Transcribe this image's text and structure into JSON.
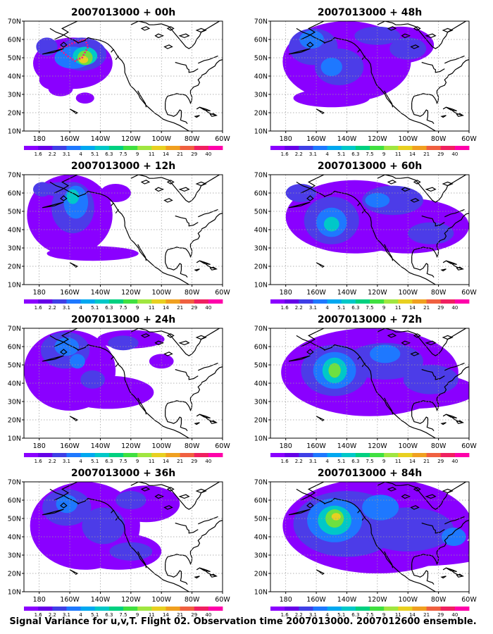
{
  "init_time": "2007013000",
  "panels": [
    {
      "title": "2007013000 + 00h",
      "lead": "00h",
      "blobs": [
        {
          "cx": -158,
          "cy": 47,
          "rx": 26,
          "ry": 14,
          "lvl": 0
        },
        {
          "cx": -168,
          "cy": 38,
          "rx": 12,
          "ry": 6,
          "lvl": 0
        },
        {
          "cx": -166,
          "cy": 33,
          "rx": 8,
          "ry": 4,
          "lvl": 0
        },
        {
          "cx": -150,
          "cy": 28,
          "rx": 6,
          "ry": 3,
          "lvl": 0
        },
        {
          "cx": -175,
          "cy": 56,
          "rx": 7,
          "ry": 5,
          "lvl": 1
        },
        {
          "cx": -152,
          "cy": 52,
          "rx": 16,
          "ry": 9,
          "lvl": 1
        },
        {
          "cx": -158,
          "cy": 50,
          "rx": 12,
          "ry": 6,
          "lvl": 2
        },
        {
          "cx": -150,
          "cy": 51,
          "rx": 8,
          "ry": 5,
          "lvl": 3
        },
        {
          "cx": -150,
          "cy": 50,
          "rx": 5,
          "ry": 4,
          "lvl": 4
        },
        {
          "cx": -151,
          "cy": 49,
          "rx": 3,
          "ry": 2,
          "lvl": 5
        }
      ]
    },
    {
      "title": "2007013000 + 12h",
      "lead": "12h",
      "blobs": [
        {
          "cx": -160,
          "cy": 48,
          "rx": 28,
          "ry": 22,
          "lvl": 0
        },
        {
          "cx": -145,
          "cy": 27,
          "rx": 30,
          "ry": 4,
          "lvl": 0
        },
        {
          "cx": -130,
          "cy": 60,
          "rx": 10,
          "ry": 5,
          "lvl": 0
        },
        {
          "cx": -178,
          "cy": 62,
          "rx": 6,
          "ry": 4,
          "lvl": 1
        },
        {
          "cx": -158,
          "cy": 52,
          "rx": 14,
          "ry": 14,
          "lvl": 1
        },
        {
          "cx": -165,
          "cy": 62,
          "rx": 14,
          "ry": 4,
          "lvl": 1
        },
        {
          "cx": -156,
          "cy": 55,
          "rx": 8,
          "ry": 9,
          "lvl": 2
        },
        {
          "cx": -158,
          "cy": 58,
          "rx": 4,
          "ry": 4,
          "lvl": 3
        }
      ]
    },
    {
      "title": "2007013000 + 24h",
      "lead": "24h",
      "blobs": [
        {
          "cx": -160,
          "cy": 47,
          "rx": 30,
          "ry": 22,
          "lvl": 0
        },
        {
          "cx": -135,
          "cy": 35,
          "rx": 30,
          "ry": 9,
          "lvl": 0
        },
        {
          "cx": -120,
          "cy": 64,
          "rx": 22,
          "ry": 5,
          "lvl": 0
        },
        {
          "cx": -100,
          "cy": 52,
          "rx": 8,
          "ry": 4,
          "lvl": 0
        },
        {
          "cx": -163,
          "cy": 58,
          "rx": 16,
          "ry": 10,
          "lvl": 1
        },
        {
          "cx": -125,
          "cy": 62,
          "rx": 10,
          "ry": 4,
          "lvl": 1
        },
        {
          "cx": -145,
          "cy": 42,
          "rx": 8,
          "ry": 5,
          "lvl": 1
        },
        {
          "cx": -162,
          "cy": 60,
          "rx": 8,
          "ry": 5,
          "lvl": 2
        },
        {
          "cx": -155,
          "cy": 52,
          "rx": 5,
          "ry": 4,
          "lvl": 2
        }
      ]
    },
    {
      "title": "2007013000 + 36h",
      "lead": "36h",
      "blobs": [
        {
          "cx": -150,
          "cy": 46,
          "rx": 36,
          "ry": 24,
          "lvl": 0
        },
        {
          "cx": -128,
          "cy": 32,
          "rx": 28,
          "ry": 10,
          "lvl": 0
        },
        {
          "cx": -110,
          "cy": 58,
          "rx": 22,
          "ry": 10,
          "lvl": 0
        },
        {
          "cx": -162,
          "cy": 56,
          "rx": 16,
          "ry": 10,
          "lvl": 1
        },
        {
          "cx": -138,
          "cy": 46,
          "rx": 14,
          "ry": 10,
          "lvl": 1
        },
        {
          "cx": -120,
          "cy": 32,
          "rx": 14,
          "ry": 5,
          "lvl": 1
        },
        {
          "cx": -120,
          "cy": 60,
          "rx": 10,
          "ry": 5,
          "lvl": 1
        },
        {
          "cx": -162,
          "cy": 58,
          "rx": 7,
          "ry": 5,
          "lvl": 2
        }
      ]
    },
    {
      "title": "2007013000 + 48h",
      "lead": "48h",
      "blobs": [
        {
          "cx": -140,
          "cy": 48,
          "rx": 42,
          "ry": 22,
          "lvl": 0
        },
        {
          "cx": -150,
          "cy": 28,
          "rx": 25,
          "ry": 5,
          "lvl": 0
        },
        {
          "cx": -105,
          "cy": 57,
          "rx": 22,
          "ry": 10,
          "lvl": 0
        },
        {
          "cx": -162,
          "cy": 56,
          "rx": 16,
          "ry": 10,
          "lvl": 1
        },
        {
          "cx": -145,
          "cy": 45,
          "rx": 16,
          "ry": 10,
          "lvl": 1
        },
        {
          "cx": -120,
          "cy": 62,
          "rx": 15,
          "ry": 5,
          "lvl": 1
        },
        {
          "cx": -100,
          "cy": 55,
          "rx": 12,
          "ry": 6,
          "lvl": 1
        },
        {
          "cx": -150,
          "cy": 45,
          "rx": 7,
          "ry": 5,
          "lvl": 2
        },
        {
          "cx": -163,
          "cy": 60,
          "rx": 8,
          "ry": 5,
          "lvl": 2
        }
      ]
    },
    {
      "title": "2007013000 + 60h",
      "lead": "60h",
      "blobs": [
        {
          "cx": -135,
          "cy": 47,
          "rx": 45,
          "ry": 20,
          "lvl": 0
        },
        {
          "cx": -100,
          "cy": 42,
          "rx": 40,
          "ry": 15,
          "lvl": 0
        },
        {
          "cx": -150,
          "cy": 45,
          "rx": 18,
          "ry": 13,
          "lvl": 1
        },
        {
          "cx": -110,
          "cy": 56,
          "rx": 20,
          "ry": 8,
          "lvl": 1
        },
        {
          "cx": -85,
          "cy": 38,
          "rx": 15,
          "ry": 6,
          "lvl": 1
        },
        {
          "cx": -170,
          "cy": 60,
          "rx": 10,
          "ry": 5,
          "lvl": 1
        },
        {
          "cx": -150,
          "cy": 44,
          "rx": 10,
          "ry": 8,
          "lvl": 2
        },
        {
          "cx": -150,
          "cy": 43,
          "rx": 5,
          "ry": 4,
          "lvl": 3
        },
        {
          "cx": -120,
          "cy": 56,
          "rx": 8,
          "ry": 4,
          "lvl": 2
        }
      ]
    },
    {
      "title": "2007013000 + 72h",
      "lead": "72h",
      "blobs": [
        {
          "cx": -125,
          "cy": 46,
          "rx": 58,
          "ry": 24,
          "lvl": 0
        },
        {
          "cx": -100,
          "cy": 36,
          "rx": 45,
          "ry": 10,
          "lvl": 0
        },
        {
          "cx": -148,
          "cy": 47,
          "rx": 22,
          "ry": 14,
          "lvl": 1
        },
        {
          "cx": -115,
          "cy": 52,
          "rx": 25,
          "ry": 10,
          "lvl": 1
        },
        {
          "cx": -85,
          "cy": 42,
          "rx": 18,
          "ry": 8,
          "lvl": 1
        },
        {
          "cx": -148,
          "cy": 47,
          "rx": 14,
          "ry": 10,
          "lvl": 2
        },
        {
          "cx": -115,
          "cy": 56,
          "rx": 10,
          "ry": 5,
          "lvl": 2
        },
        {
          "cx": -148,
          "cy": 47,
          "rx": 8,
          "ry": 7,
          "lvl": 3
        },
        {
          "cx": -148,
          "cy": 47,
          "rx": 4,
          "ry": 4,
          "lvl": 4
        }
      ]
    },
    {
      "title": "2007013000 + 84h",
      "lead": "84h",
      "blobs": [
        {
          "cx": -120,
          "cy": 46,
          "rx": 62,
          "ry": 26,
          "lvl": 0
        },
        {
          "cx": -95,
          "cy": 32,
          "rx": 50,
          "ry": 8,
          "lvl": 0
        },
        {
          "cx": -140,
          "cy": 47,
          "rx": 35,
          "ry": 18,
          "lvl": 1
        },
        {
          "cx": -100,
          "cy": 44,
          "rx": 30,
          "ry": 12,
          "lvl": 1
        },
        {
          "cx": -148,
          "cy": 49,
          "rx": 18,
          "ry": 12,
          "lvl": 2
        },
        {
          "cx": -118,
          "cy": 56,
          "rx": 12,
          "ry": 7,
          "lvl": 2
        },
        {
          "cx": -70,
          "cy": 40,
          "rx": 8,
          "ry": 5,
          "lvl": 2
        },
        {
          "cx": -148,
          "cy": 49,
          "rx": 11,
          "ry": 8,
          "lvl": 3
        },
        {
          "cx": -148,
          "cy": 50,
          "rx": 6,
          "ry": 5,
          "lvl": 4
        },
        {
          "cx": -147,
          "cy": 51,
          "rx": 3,
          "ry": 2,
          "lvl": 5
        }
      ]
    }
  ],
  "map": {
    "lon_min": 170,
    "lon_max": 300,
    "lat_min": 10,
    "lat_max": 70,
    "lon_ticks": [
      "180",
      "160W",
      "140W",
      "120W",
      "100W",
      "80W",
      "60W"
    ],
    "lat_ticks": [
      "10N",
      "20N",
      "30N",
      "40N",
      "50N",
      "60N",
      "70N"
    ],
    "gridlines": "dotted"
  },
  "colorbar": {
    "labels": [
      "1.6",
      "2.2",
      "3.1",
      "4",
      "5.1",
      "6.3",
      "7.5",
      "9",
      "11",
      "14",
      "21",
      "29",
      "40"
    ],
    "colors": [
      "#8a00ff",
      "#6600e8",
      "#3f3fe6",
      "#1e78ff",
      "#00a8f0",
      "#00c8c8",
      "#00d080",
      "#40e040",
      "#a0e640",
      "#e8d020",
      "#f0a020",
      "#f06040",
      "#f02060",
      "#ff00aa"
    ]
  },
  "level_colors": [
    "#8a00ff",
    "#4c3ce8",
    "#1e78ff",
    "#00c8c8",
    "#6ee040",
    "#e8d020"
  ],
  "observation_track": {
    "color": "#ff1080",
    "points": [
      [
        -167,
        55
      ],
      [
        -163,
        52
      ],
      [
        -160,
        50
      ],
      [
        -156,
        48
      ],
      [
        -155,
        49
      ],
      [
        -152,
        50
      ],
      [
        -150,
        53
      ],
      [
        -148,
        56
      ],
      [
        -150,
        60
      ],
      [
        -158,
        58
      ],
      [
        -163,
        56
      ],
      [
        -167,
        55
      ]
    ]
  },
  "caption": "Signal Variance for u,v,T. Flight 02. Observation time 2007013000. 2007012600 ensemble."
}
